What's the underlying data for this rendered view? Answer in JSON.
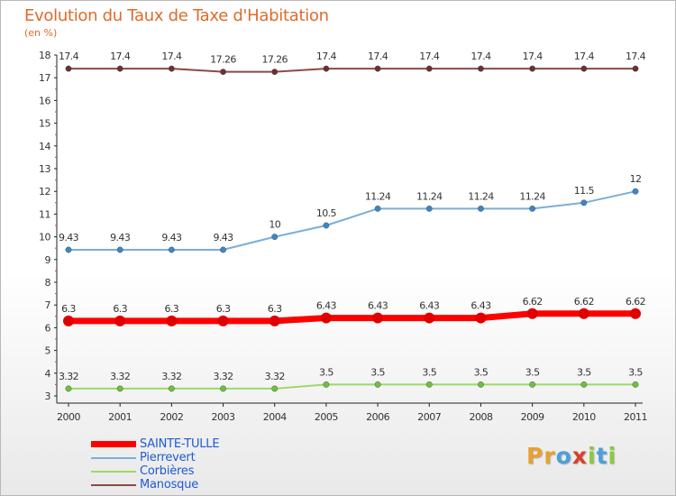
{
  "title": "Evolution du Taux de Taxe d'Habitation",
  "subtitle": "(en %)",
  "logo": {
    "letters": [
      "P",
      "r",
      "o",
      "x",
      "i",
      "t",
      "i"
    ],
    "colors": [
      "#e8a030",
      "#e8a030",
      "#4aa0d8",
      "#d8402a",
      "#8cc83c",
      "#4aa0d8",
      "#8cc83c"
    ]
  },
  "chart_data": {
    "type": "line",
    "x": [
      "2000",
      "2001",
      "2002",
      "2003",
      "2004",
      "2005",
      "2006",
      "2007",
      "2008",
      "2009",
      "2010",
      "2011"
    ],
    "ylim": [
      3,
      18
    ],
    "yticks": [
      "3",
      "4",
      "5",
      "6",
      "7",
      "8",
      "9",
      "10",
      "11",
      "12",
      "13",
      "14",
      "15",
      "16",
      "17",
      "18"
    ],
    "grid": false,
    "legend_position": "bottom-left",
    "series": [
      {
        "name": "SAINTE-TULLE",
        "color": "#ff0000",
        "marker_color": "#e00000",
        "width": 7,
        "values": [
          6.3,
          6.3,
          6.3,
          6.3,
          6.3,
          6.43,
          6.43,
          6.43,
          6.43,
          6.62,
          6.62,
          6.62
        ],
        "labels": [
          "6.3",
          "6.3",
          "6.3",
          "6.3",
          "6.3",
          "6.43",
          "6.43",
          "6.43",
          "6.43",
          "6.62",
          "6.62",
          "6.62"
        ]
      },
      {
        "name": "Pierrevert",
        "color": "#7aaed8",
        "marker_color": "#3a86c8",
        "width": 2,
        "values": [
          9.43,
          9.43,
          9.43,
          9.43,
          10,
          10.5,
          11.24,
          11.24,
          11.24,
          11.24,
          11.5,
          12
        ],
        "labels": [
          "9.43",
          "9.43",
          "9.43",
          "9.43",
          "10",
          "10.5",
          "11.24",
          "11.24",
          "11.24",
          "11.24",
          "11.5",
          "12"
        ]
      },
      {
        "name": "Corbières",
        "color": "#9ed86a",
        "marker_color": "#6cc23a",
        "width": 2,
        "values": [
          3.32,
          3.32,
          3.32,
          3.32,
          3.32,
          3.5,
          3.5,
          3.5,
          3.5,
          3.5,
          3.5,
          3.5
        ],
        "labels": [
          "3.32",
          "3.32",
          "3.32",
          "3.32",
          "3.32",
          "3.5",
          "3.5",
          "3.5",
          "3.5",
          "3.5",
          "3.5",
          "3.5"
        ]
      },
      {
        "name": "Manosque",
        "color": "#8a4a4a",
        "marker_color": "#6e2e2e",
        "width": 2,
        "values": [
          17.4,
          17.4,
          17.4,
          17.26,
          17.26,
          17.4,
          17.4,
          17.4,
          17.4,
          17.4,
          17.4,
          17.4
        ],
        "labels": [
          "17.4",
          "17.4",
          "17.4",
          "17.26",
          "17.26",
          "17.4",
          "17.4",
          "17.4",
          "17.4",
          "17.4",
          "17.4",
          "17.4"
        ]
      }
    ]
  }
}
